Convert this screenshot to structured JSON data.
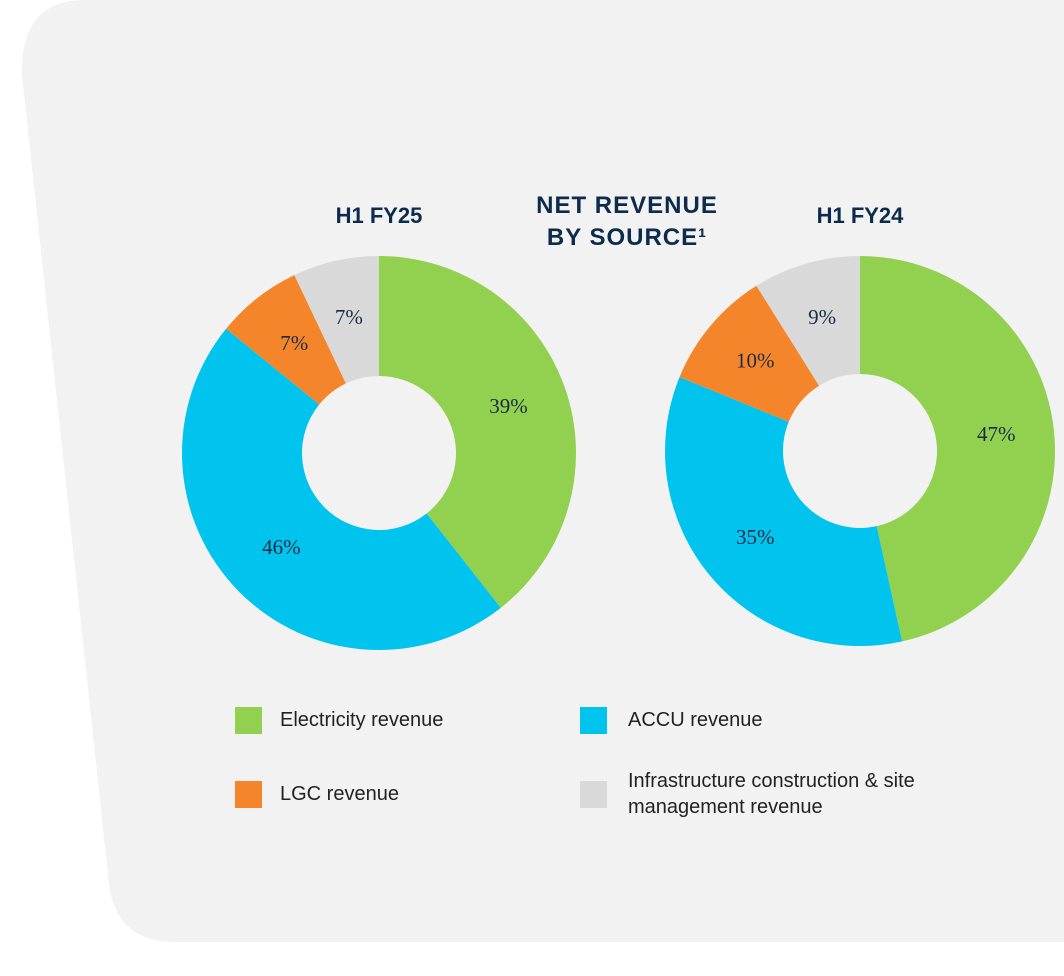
{
  "title": "NET REVENUE BY SOURCE¹",
  "categories": [
    "Electricity revenue",
    "ACCU revenue",
    "LGC revenue",
    "Infrastructure construction & site management revenue"
  ],
  "colors": [
    "#92d050",
    "#00c4ee",
    "#f5852a",
    "#d9d9d9"
  ],
  "chart_data": [
    {
      "type": "pie",
      "title": "H1 FY25",
      "values": [
        39,
        46,
        7,
        7
      ],
      "value_labels": [
        "39%",
        "46%",
        "7%",
        "7%"
      ]
    },
    {
      "type": "pie",
      "title": "H1 FY24",
      "values": [
        47,
        35,
        10,
        9
      ],
      "value_labels": [
        "47%",
        "35%",
        "10%",
        "9%"
      ]
    }
  ]
}
